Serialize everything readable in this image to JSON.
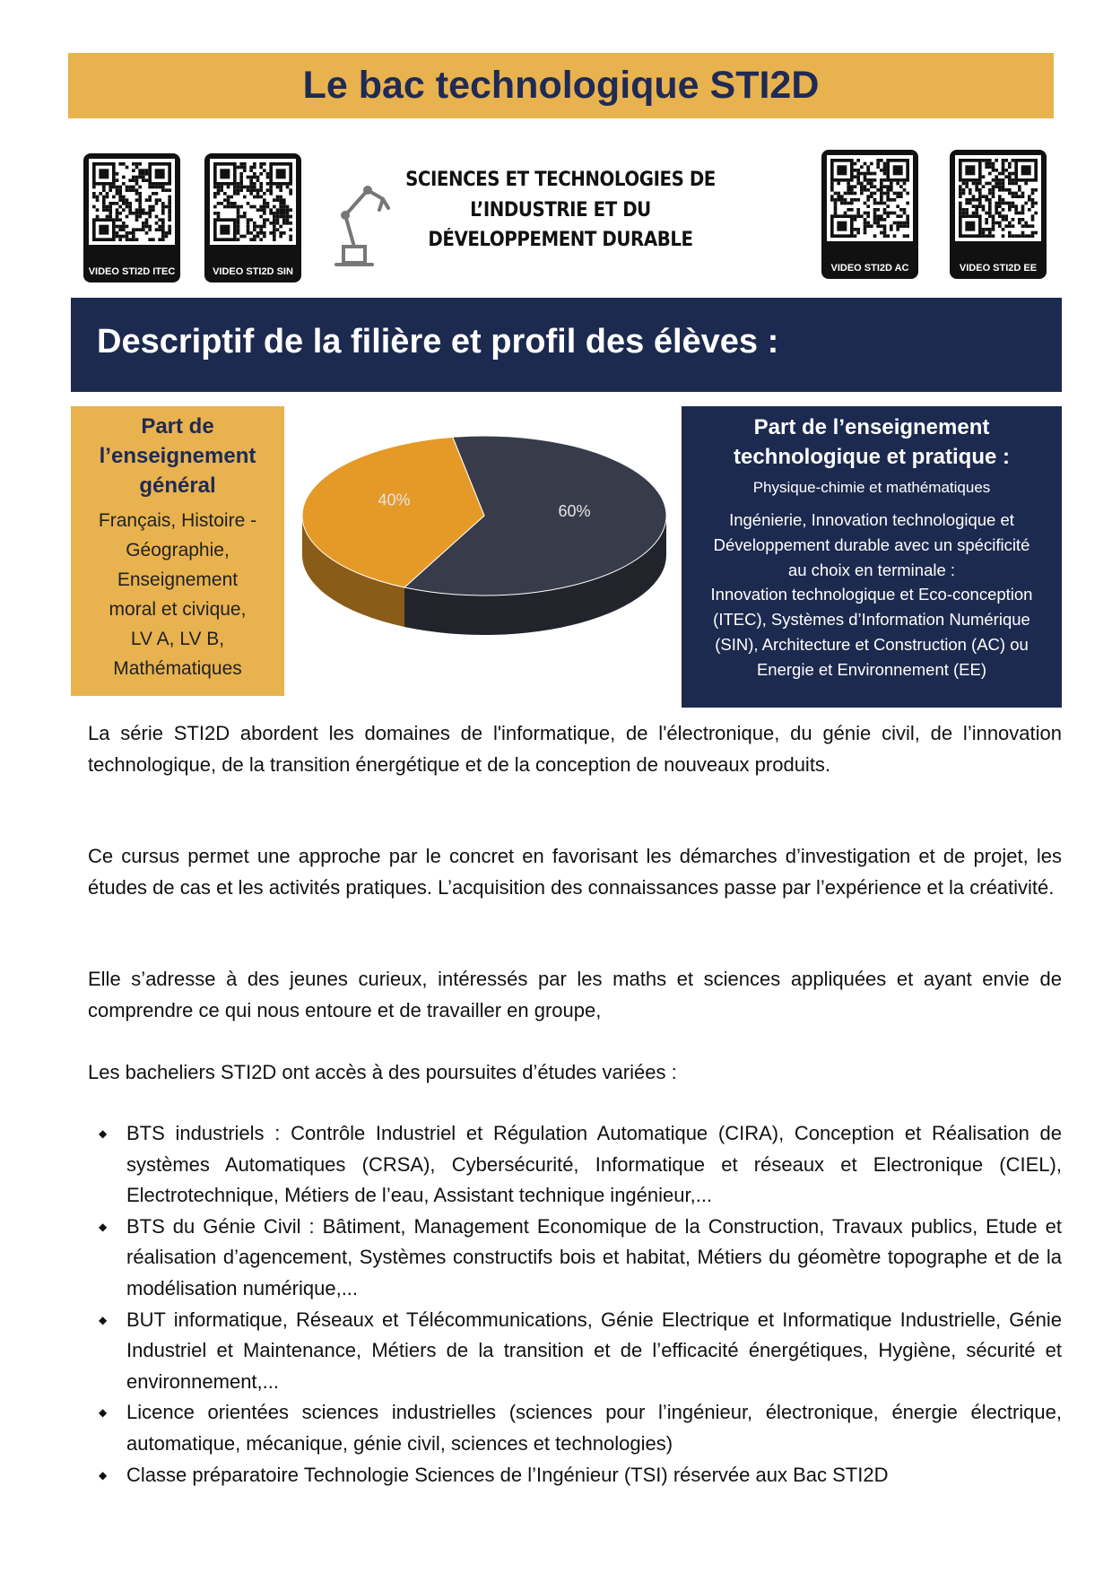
{
  "header": {
    "title": "Le bac technologique STI2D"
  },
  "qr_codes": [
    "VIDEO STI2D ITEC",
    "VIDEO STI2D SIN",
    "VIDEO STI2D AC",
    "VIDEO STI2D EE"
  ],
  "subtitle": [
    "SCIENCES ET TECHNOLOGIES DE",
    "L’INDUSTRIE ET DU",
    "DÉVELOPPEMENT DURABLE"
  ],
  "section_title": "Descriptif de la filière et profil des élèves :",
  "left_box": {
    "heading": [
      "Part de",
      "l’enseignement",
      "général"
    ],
    "lines": [
      "Français, Histoire -",
      "Géographie,",
      "Enseignement",
      "moral et civique,",
      "LV A, LV B,",
      "Mathématiques"
    ]
  },
  "right_box": {
    "heading": [
      "Part de l’enseignement",
      "technologique et pratique :"
    ],
    "subheading": "Physique-chimie  et  mathématiques",
    "lines": [
      "Ingénierie, Innovation technologique et",
      "Développement durable avec un spécificité",
      "au choix en terminale :",
      "Innovation technologique et Eco-conception",
      "(ITEC), Systèmes d’Information Numérique",
      "(SIN), Architecture et Construction (AC) ou",
      "Energie et Environnement (EE)"
    ]
  },
  "chart_data": {
    "type": "pie",
    "values": [
      60,
      40
    ],
    "value_labels": [
      "60%",
      "40%"
    ],
    "colors": [
      "#383c4a",
      "#e59a27"
    ]
  },
  "paragraphs": [
    "La série STI2D abordent les domaines de l'informatique, de l'électronique, du génie civil, de l’innovation technologique, de la transition énergétique et de la conception de nouveaux produits.",
    "Ce cursus permet une approche par le concret en favorisant les démarches d’investigation et de projet, les études de cas et les activités pratiques. L’acquisition des connaissances passe par l’expérience et la créativité.",
    "Elle s’adresse à des jeunes curieux, intéressés par les maths et sciences appliquées et ayant envie de comprendre ce qui nous entoure et de travailler en groupe,",
    "Les bacheliers STI2D ont accès à des poursuites d’études variées :"
  ],
  "list": [
    "BTS industriels : Contrôle Industriel et Régulation Automatique (CIRA), Conception et Réalisation de systèmes Automatiques (CRSA), Cybersécurité, Informatique et réseaux et Electronique (CIEL), Electrotechnique, Métiers de l’eau, Assistant technique ingénieur,...",
    "BTS du Génie Civil : Bâtiment, Management Economique de la Construction, Travaux publics, Etude et réalisation d’agencement, Systèmes constructifs bois et habitat, Métiers du géomètre topographe et de la modélisation numérique,...",
    "BUT informatique, Réseaux et Télécommunications, Génie Electrique et Informatique Industrielle, Génie Industriel et Maintenance, Métiers de la transition et de l’efficacité énergétiques, Hygiène, sécurité et environnement,...",
    "Licence orientées sciences industrielles (sciences pour l’ingénieur, électronique, énergie électrique, automatique, mécanique, génie civil, sciences et technologies)",
    "Classe préparatoire Technologie Sciences de l’Ingénieur (TSI) réservée aux Bac STI2D"
  ]
}
